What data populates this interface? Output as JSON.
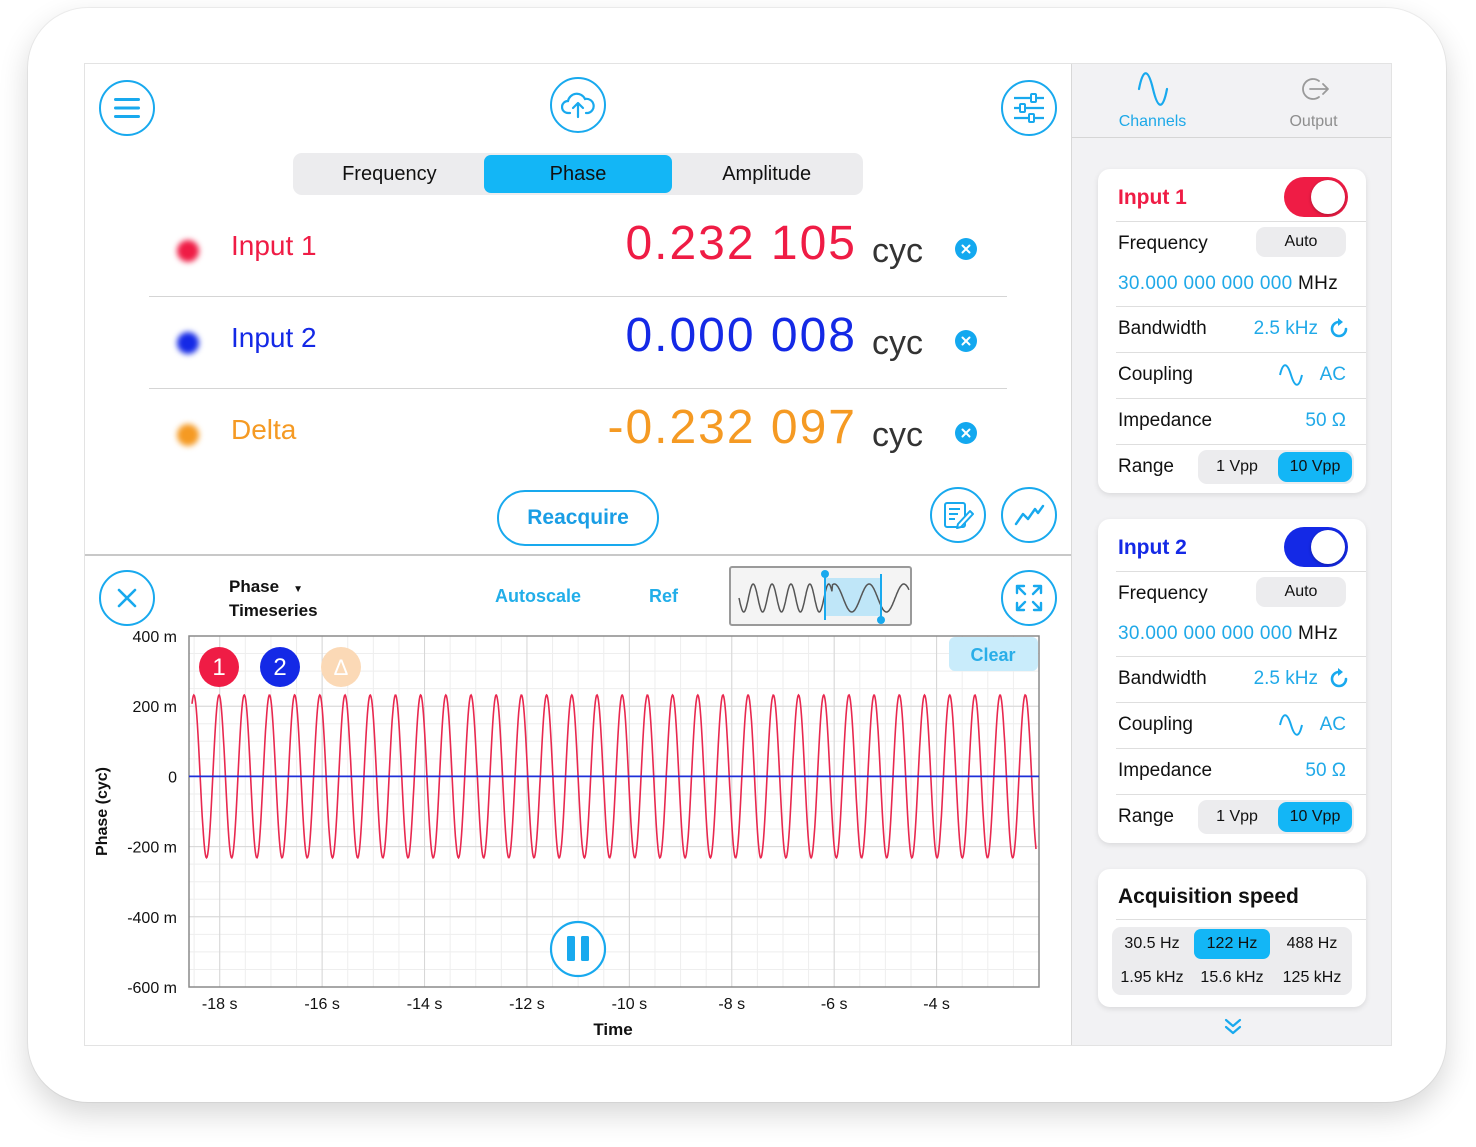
{
  "segmented": {
    "items": [
      {
        "label": "Frequency",
        "active": false
      },
      {
        "label": "Phase",
        "active": true
      },
      {
        "label": "Amplitude",
        "active": false
      }
    ]
  },
  "readings": [
    {
      "label": "Input 1",
      "value": "0.232 105",
      "unit": "cyc",
      "color": "#ef1c45"
    },
    {
      "label": "Input 2",
      "value": "0.000 008",
      "unit": "cyc",
      "color": "#1429e6"
    },
    {
      "label": "Delta",
      "value": "-0.232 097",
      "unit": "cyc",
      "color": "#f59a23"
    }
  ],
  "buttons": {
    "reacquire": "Reacquire",
    "autoscale": "Autoscale",
    "ref": "Ref",
    "clear": "Clear"
  },
  "plot": {
    "title_line1": "Phase",
    "title_line2": "Timeseries",
    "badges": [
      "1",
      "2",
      "Δ"
    ]
  },
  "chart_data": {
    "type": "line",
    "xlabel": "Time",
    "ylabel": "Phase (cyc)",
    "xticks": [
      "-18 s",
      "-16 s",
      "-14 s",
      "-12 s",
      "-10 s",
      "-8 s",
      "-6 s",
      "-4 s"
    ],
    "yticks": [
      "400 m",
      "200 m",
      "0",
      "-200 m",
      "-400 m",
      "-600 m"
    ],
    "xlim": [
      -18.6,
      -2.0
    ],
    "ylim": [
      -0.6,
      0.4
    ],
    "grid": true,
    "series": [
      {
        "name": "1",
        "color": "#e8284f",
        "kind": "sine",
        "amplitude": 0.232,
        "cycles": 33.5
      },
      {
        "name": "2",
        "color": "#1e2fd8",
        "kind": "flat",
        "value": 0.0
      }
    ]
  },
  "sidebar": {
    "tabs": [
      {
        "label": "Channels",
        "active": true
      },
      {
        "label": "Output",
        "active": false
      }
    ],
    "channels": [
      {
        "title": "Input 1",
        "color": "#ef1c45",
        "enabled": true,
        "frequency_label": "Frequency",
        "frequency_mode": "Auto",
        "frequency_value": "30.000 000 000 000",
        "frequency_unit": "MHz",
        "bandwidth_label": "Bandwidth",
        "bandwidth_value": "2.5 kHz",
        "coupling_label": "Coupling",
        "coupling_value": "AC",
        "impedance_label": "Impedance",
        "impedance_value": "50 Ω",
        "range_label": "Range",
        "range_options": [
          "1 Vpp",
          "10 Vpp"
        ],
        "range_selected": "10 Vpp"
      },
      {
        "title": "Input 2",
        "color": "#1429e6",
        "enabled": true,
        "frequency_label": "Frequency",
        "frequency_mode": "Auto",
        "frequency_value": "30.000 000 000 000",
        "frequency_unit": "MHz",
        "bandwidth_label": "Bandwidth",
        "bandwidth_value": "2.5 kHz",
        "coupling_label": "Coupling",
        "coupling_value": "AC",
        "impedance_label": "Impedance",
        "impedance_value": "50 Ω",
        "range_label": "Range",
        "range_options": [
          "1 Vpp",
          "10 Vpp"
        ],
        "range_selected": "10 Vpp"
      }
    ],
    "acquisition": {
      "title": "Acquisition speed",
      "options": [
        "30.5 Hz",
        "122 Hz",
        "488 Hz",
        "1.95 kHz",
        "15.6 kHz",
        "125 kHz"
      ],
      "selected": "122 Hz"
    }
  },
  "colors": {
    "accent": "#13b6f6",
    "input1": "#ef1c45",
    "input2": "#1429e6",
    "delta": "#f59a23"
  }
}
